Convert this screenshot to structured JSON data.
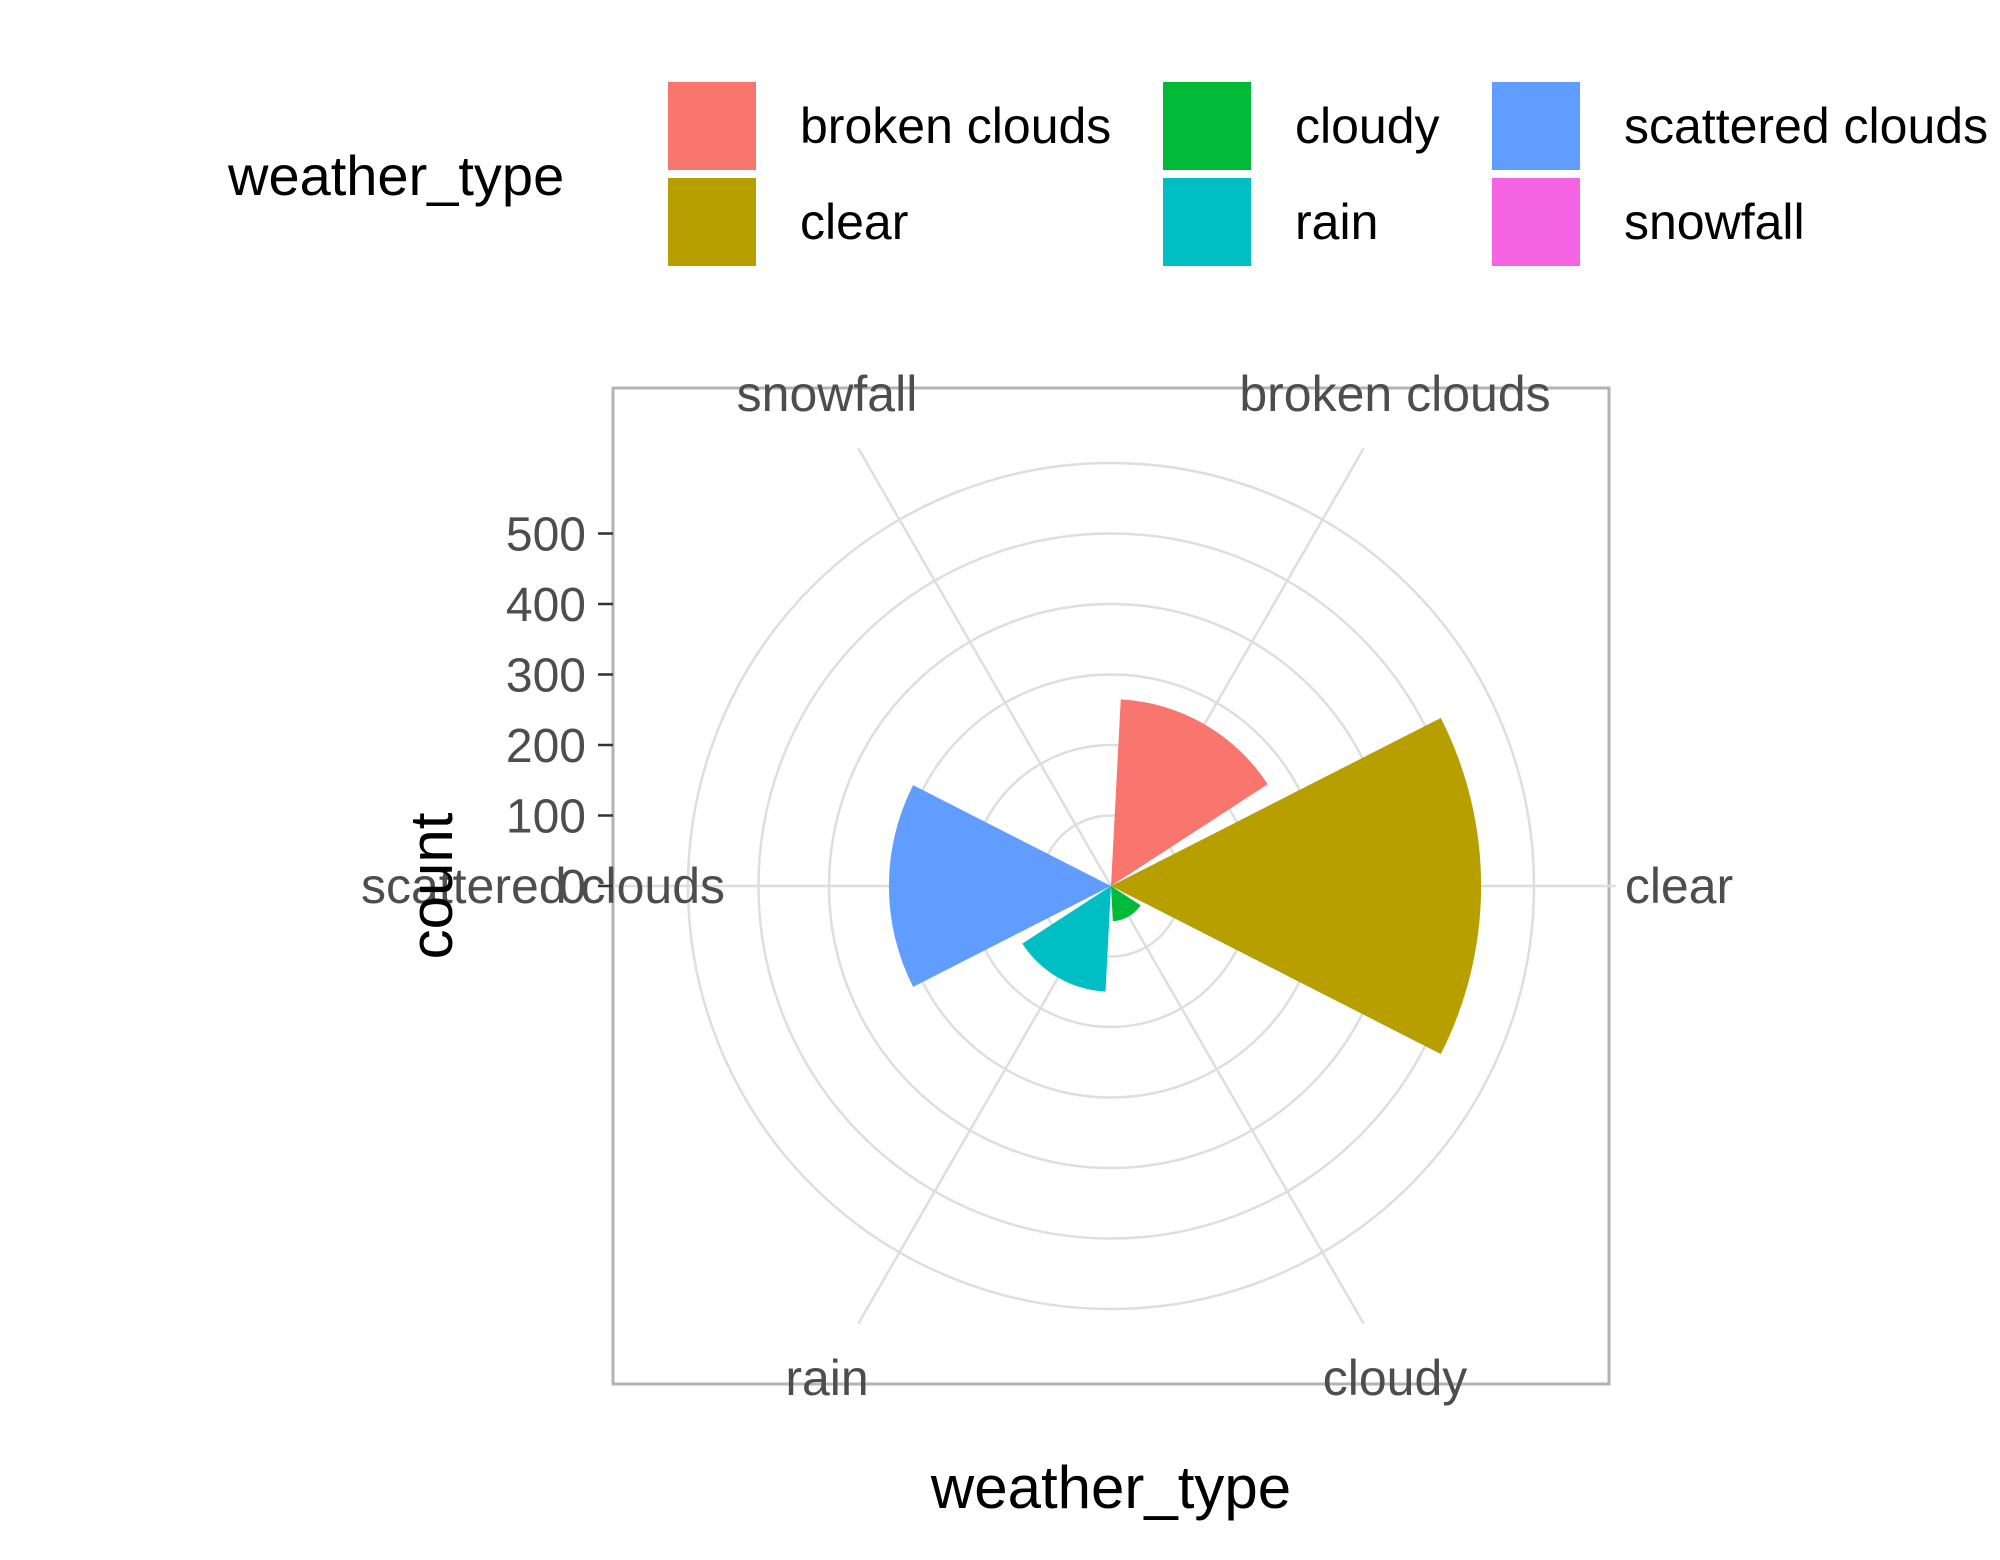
{
  "chart_data": {
    "type": "bar",
    "coordinate_system": "polar",
    "categories": [
      "broken clouds",
      "clear",
      "cloudy",
      "rain",
      "scattered clouds",
      "snowfall"
    ],
    "values": [
      265,
      525,
      50,
      150,
      315,
      0
    ],
    "colors": [
      "#F8766D",
      "#B79F00",
      "#00BA38",
      "#00BFC4",
      "#619CFF",
      "#F564E3"
    ],
    "xlabel": "weather_type",
    "ylabel": "count",
    "y_ticks": [
      0,
      100,
      200,
      300,
      400,
      500
    ],
    "y_tick_labels": [
      "0",
      "100",
      "200",
      "300",
      "400",
      "500"
    ],
    "ylim": [
      0,
      640
    ],
    "grid": true,
    "legend": {
      "title": "weather_type",
      "position": "top",
      "entries": [
        "broken clouds",
        "clear",
        "cloudy",
        "rain",
        "scattered clouds",
        "snowfall"
      ]
    }
  }
}
